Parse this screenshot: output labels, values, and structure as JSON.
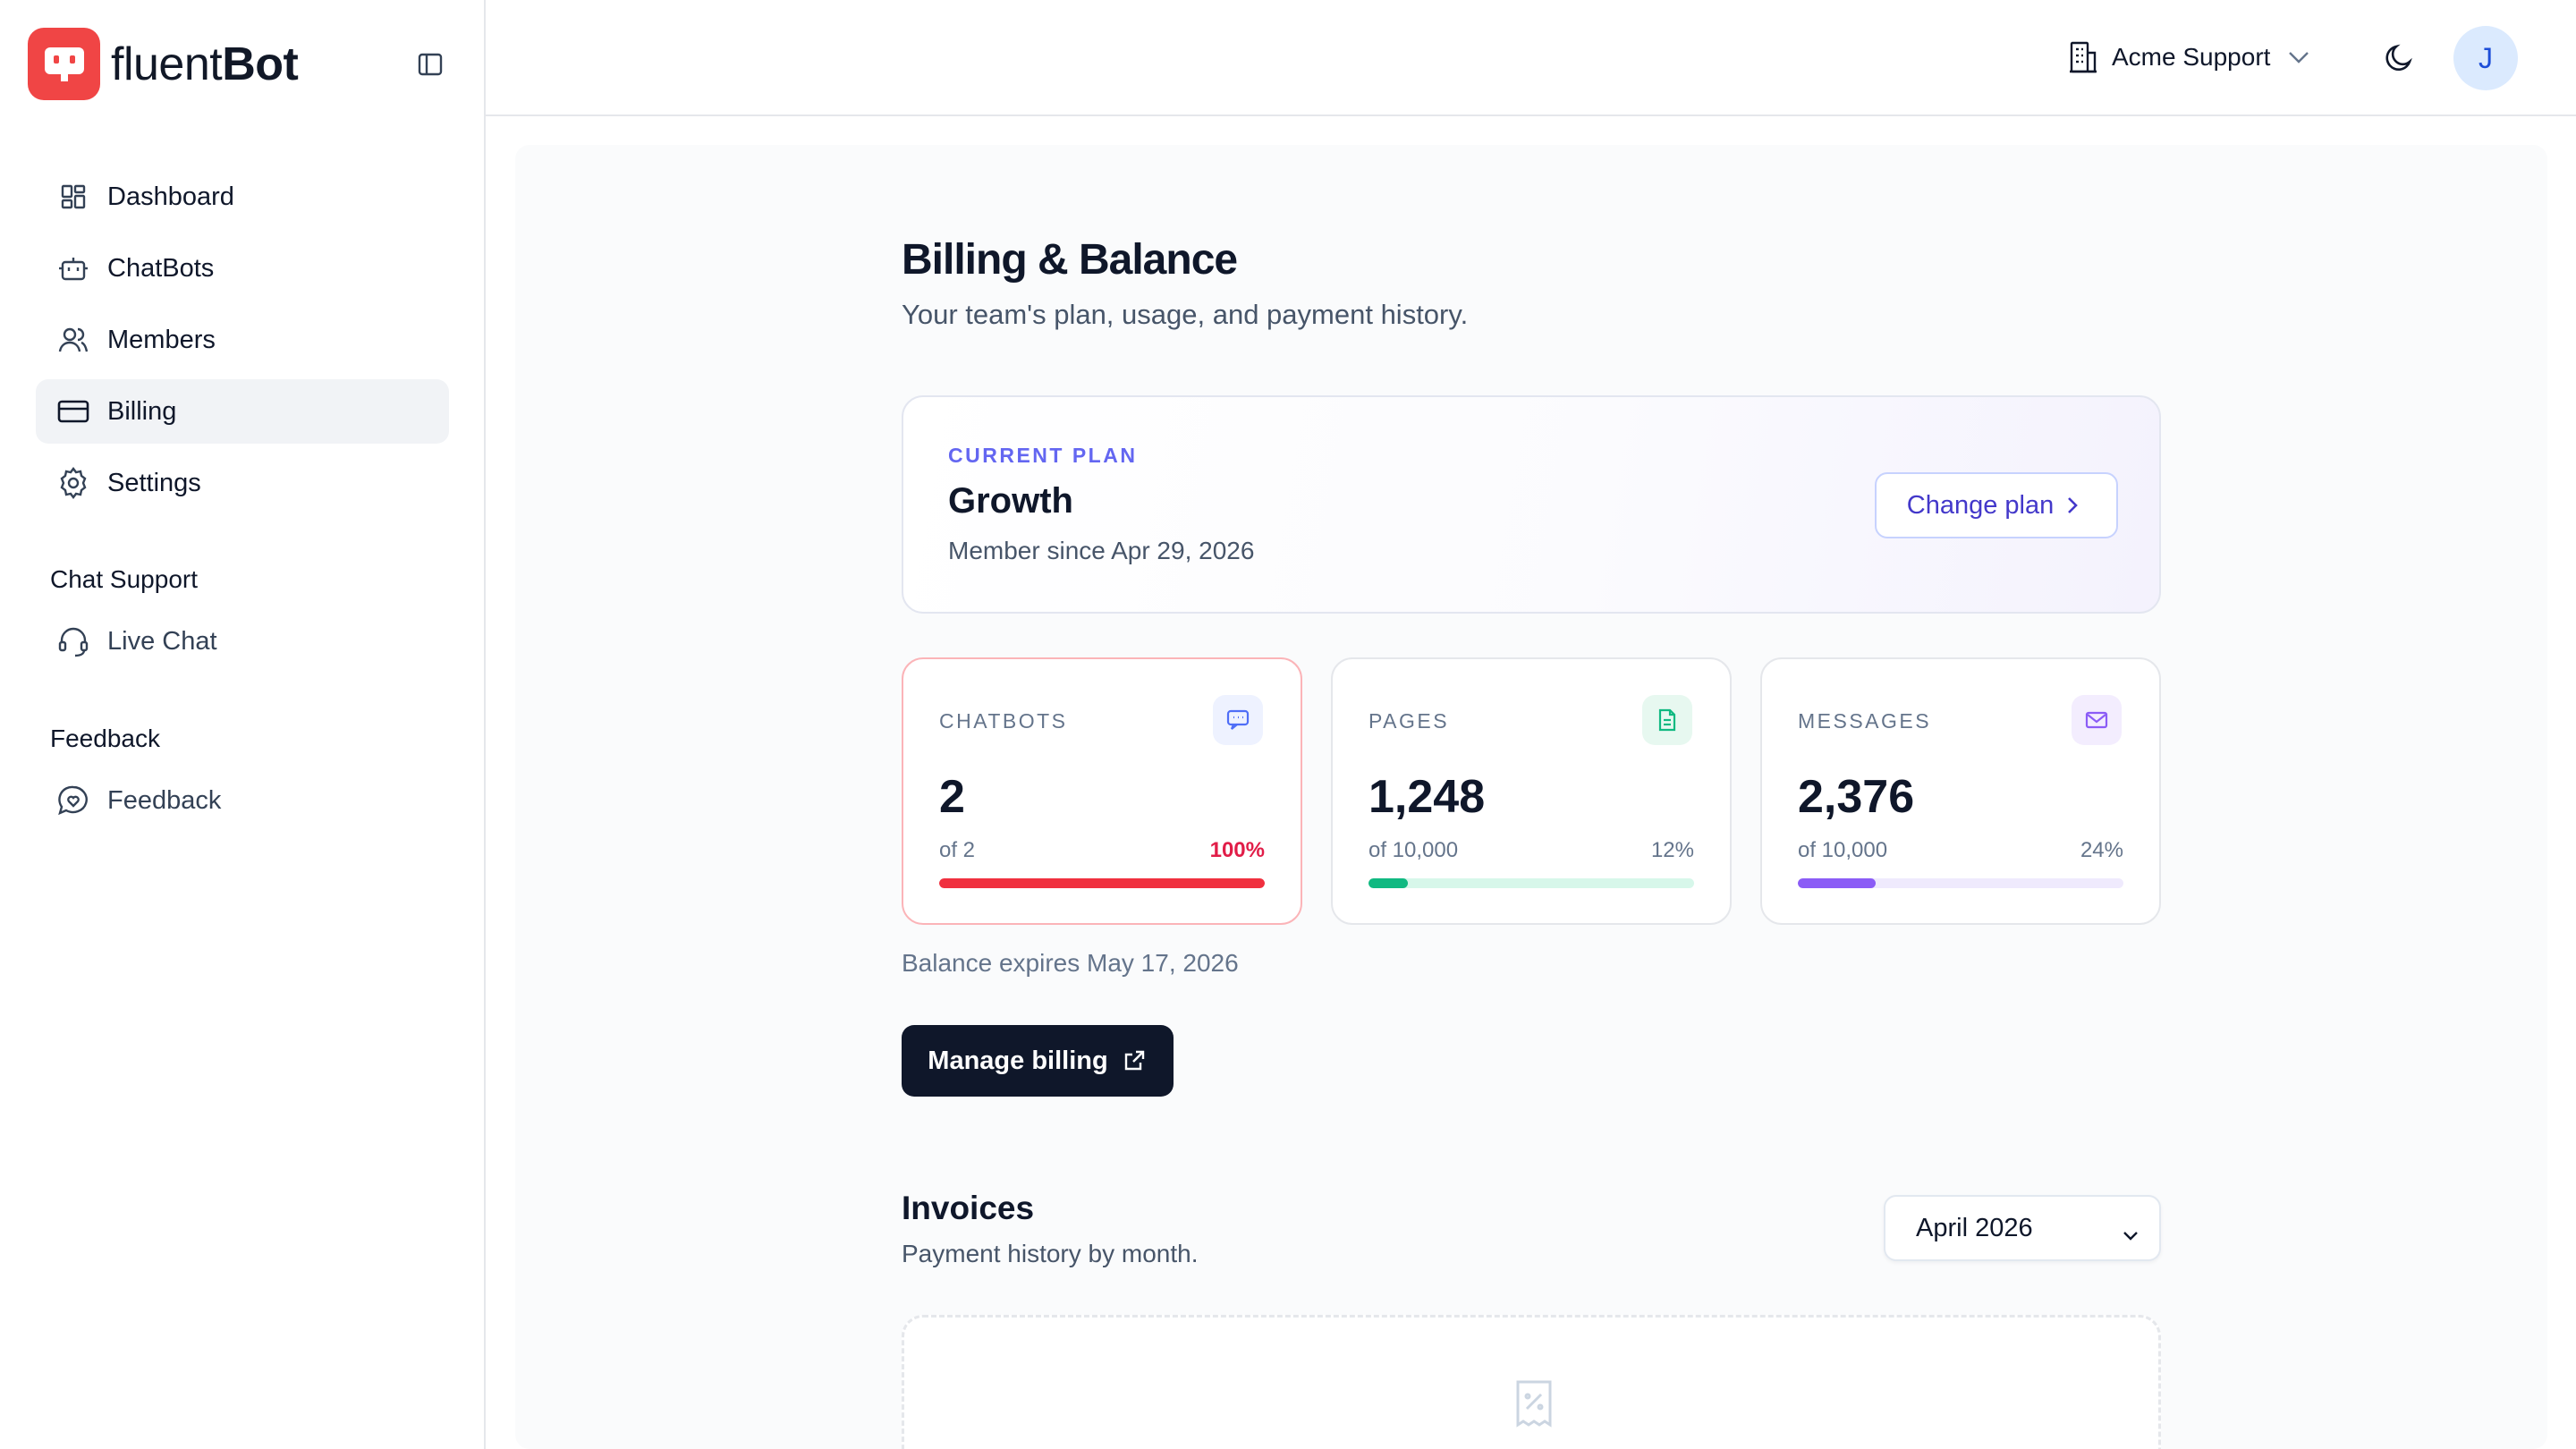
{
  "brand": {
    "name_light": "fluent",
    "name_bold": "Bot"
  },
  "sidebar": {
    "items": [
      {
        "label": "Dashboard",
        "icon": "dashboard-icon"
      },
      {
        "label": "ChatBots",
        "icon": "bot-icon"
      },
      {
        "label": "Members",
        "icon": "members-icon"
      },
      {
        "label": "Billing",
        "icon": "credit-card-icon",
        "active": true
      },
      {
        "label": "Settings",
        "icon": "gear-icon"
      }
    ],
    "sections": [
      {
        "title": "Chat Support",
        "items": [
          {
            "label": "Live Chat",
            "icon": "headset-icon"
          }
        ]
      },
      {
        "title": "Feedback",
        "items": [
          {
            "label": "Feedback",
            "icon": "feedback-icon"
          }
        ]
      }
    ]
  },
  "topbar": {
    "team": "Acme Support",
    "avatar_initial": "J"
  },
  "page": {
    "title": "Billing & Balance",
    "subtitle": "Your team's plan, usage, and payment history."
  },
  "plan": {
    "label": "CURRENT PLAN",
    "name": "Growth",
    "since": "Member since Apr 29, 2026",
    "change_label": "Change plan"
  },
  "usage": [
    {
      "label": "CHATBOTS",
      "value": "2",
      "of": "of 2",
      "pct": "100%",
      "fraction": 1.0,
      "color": "#f0303f",
      "track": "#fde2e4",
      "icon_bg": "#eef2ff",
      "icon_color": "#4f6ef7",
      "alert": true
    },
    {
      "label": "PAGES",
      "value": "1,248",
      "of": "of 10,000",
      "pct": "12%",
      "fraction": 0.12,
      "color": "#10b981",
      "track": "#d7f7ea",
      "icon_bg": "#e7f8f0",
      "icon_color": "#10b981",
      "alert": false
    },
    {
      "label": "MESSAGES",
      "value": "2,376",
      "of": "of 10,000",
      "pct": "24%",
      "fraction": 0.24,
      "color": "#8b5cf6",
      "track": "#efeafd",
      "icon_bg": "#f3edfe",
      "icon_color": "#8b5cf6",
      "alert": false
    }
  ],
  "billing": {
    "expires": "Balance expires May 17, 2026",
    "manage_label": "Manage billing"
  },
  "invoices": {
    "title": "Invoices",
    "subtitle": "Payment history by month.",
    "selected_month": "April 2026"
  }
}
